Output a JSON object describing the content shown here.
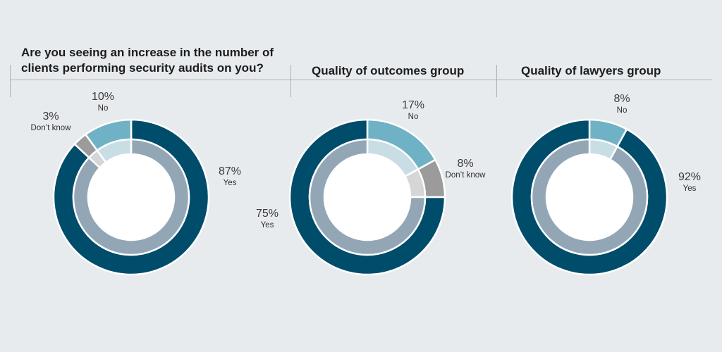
{
  "colors": {
    "yes_outer": "#004d6b",
    "yes_inner": "#93a6b6",
    "no_outer": "#6fb2c5",
    "no_inner": "#c9dde5",
    "dk_outer": "#9b9b9b",
    "dk_inner": "#d4d6d8",
    "background": "#e8ebee"
  },
  "chart_data": [
    {
      "type": "pie",
      "title": "Are you seeing an increase in the number of clients performing security audits on you?",
      "slices": [
        {
          "category": "Yes",
          "label": "Yes",
          "pct_text": "87%",
          "value": 87,
          "key": "yes"
        },
        {
          "category": "Don't know",
          "label": "Don’t know",
          "pct_text": "3%",
          "value": 3,
          "key": "dk"
        },
        {
          "category": "No",
          "label": "No",
          "pct_text": "10%",
          "value": 10,
          "key": "no"
        }
      ]
    },
    {
      "type": "pie",
      "title": "Quality of outcomes group",
      "slices": [
        {
          "category": "No",
          "label": "No",
          "pct_text": "17%",
          "value": 17,
          "key": "no"
        },
        {
          "category": "Don't know",
          "label": "Don’t know",
          "pct_text": "8%",
          "value": 8,
          "key": "dk"
        },
        {
          "category": "Yes",
          "label": "Yes",
          "pct_text": "75%",
          "value": 75,
          "key": "yes"
        }
      ]
    },
    {
      "type": "pie",
      "title": "Quality of lawyers group",
      "slices": [
        {
          "category": "No",
          "label": "No",
          "pct_text": "8%",
          "value": 8,
          "key": "no"
        },
        {
          "category": "Yes",
          "label": "Yes",
          "pct_text": "92%",
          "value": 92,
          "key": "yes"
        }
      ]
    }
  ]
}
